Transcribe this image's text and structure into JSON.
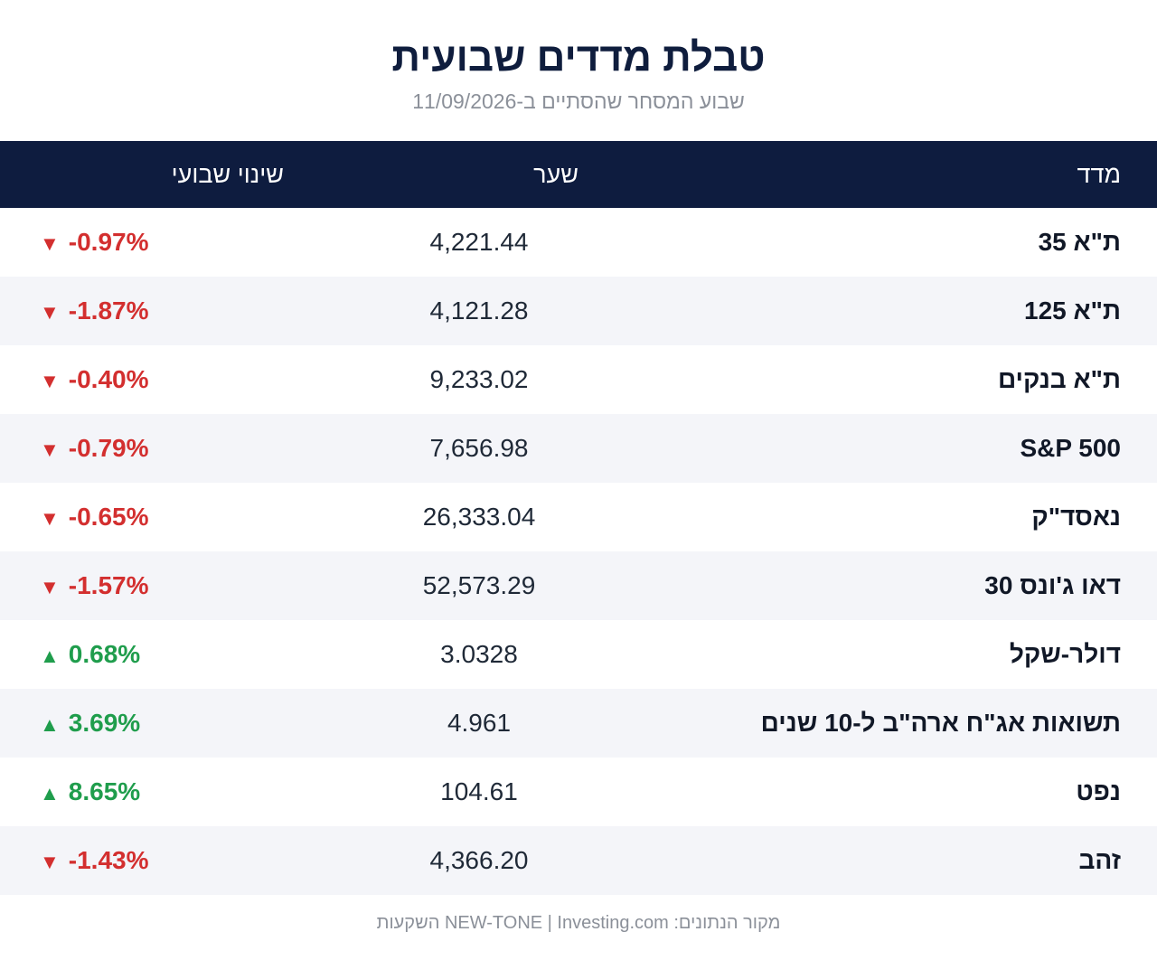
{
  "header": {
    "title": "טבלת מדדים שבועית",
    "subtitle": "שבוע המסחר שהסתיים ב-11/09/2026"
  },
  "table": {
    "columns": {
      "name": "מדד",
      "rate": "שער",
      "change": "שינוי שבועי"
    },
    "rows": [
      {
        "name": "ת\"א 35",
        "rate": "4,221.44",
        "change": "-0.97%",
        "direction": "down",
        "arrow": "▼"
      },
      {
        "name": "ת\"א 125",
        "rate": "4,121.28",
        "change": "-1.87%",
        "direction": "down",
        "arrow": "▼"
      },
      {
        "name": "ת\"א בנקים",
        "rate": "9,233.02",
        "change": "-0.40%",
        "direction": "down",
        "arrow": "▼"
      },
      {
        "name": "S&P 500",
        "rate": "7,656.98",
        "change": "-0.79%",
        "direction": "down",
        "arrow": "▼"
      },
      {
        "name": "נאסד\"ק",
        "rate": "26,333.04",
        "change": "-0.65%",
        "direction": "down",
        "arrow": "▼"
      },
      {
        "name": "דאו ג'ונס 30",
        "rate": "52,573.29",
        "change": "-1.57%",
        "direction": "down",
        "arrow": "▼"
      },
      {
        "name": "דולר-שקל",
        "rate": "3.0328",
        "change": "0.68%",
        "direction": "up",
        "arrow": "▲"
      },
      {
        "name": "תשואות אג\"ח ארה\"ב ל-10 שנים",
        "rate": "4.961",
        "change": "3.69%",
        "direction": "up",
        "arrow": "▲"
      },
      {
        "name": "נפט",
        "rate": "104.61",
        "change": "8.65%",
        "direction": "up",
        "arrow": "▲"
      },
      {
        "name": "זהב",
        "rate": "4,366.20",
        "change": "-1.43%",
        "direction": "down",
        "arrow": "▼"
      }
    ]
  },
  "footer": {
    "source": "מקור הנתונים: NEW-TONE | Investing.com השקעות"
  },
  "colors": {
    "header_bg": "#0e1c3f",
    "down": "#d32f2f",
    "up": "#1f9d4c"
  }
}
